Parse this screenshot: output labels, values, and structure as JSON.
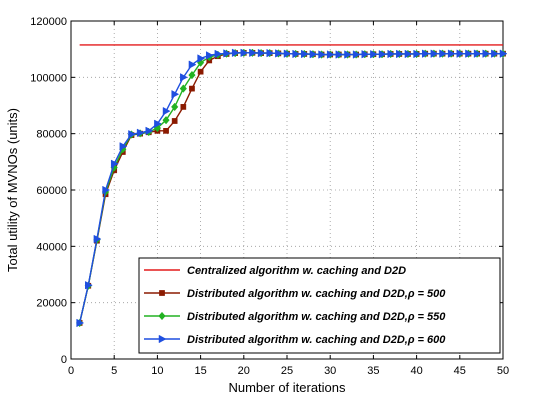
{
  "chart_data": {
    "type": "line",
    "xlabel": "Number of iterations",
    "ylabel": "Total utility of MVNOs (units)",
    "xlim": [
      0,
      50
    ],
    "ylim": [
      0,
      120000
    ],
    "xticks": [
      "0",
      "5",
      "10",
      "15",
      "20",
      "25",
      "30",
      "35",
      "40",
      "45",
      "50"
    ],
    "yticks": [
      "0",
      "20000",
      "40000",
      "60000",
      "80000",
      "100000",
      "120000"
    ],
    "grid": true,
    "legend_position": "bottom-right",
    "series": [
      {
        "name": "Centralized algorithm w. caching and D2D",
        "color": "#e31a1c",
        "marker": "none",
        "x": [
          1,
          50
        ],
        "y": [
          111500,
          111500
        ]
      },
      {
        "name": "Distributed algorithm w. caching and D2D,ρ = 500",
        "color": "#8b1a00",
        "marker": "square",
        "x": [
          1,
          2,
          3,
          4,
          5,
          6,
          7,
          8,
          9,
          10,
          11,
          12,
          13,
          14,
          15,
          16,
          17,
          18,
          19,
          20,
          21,
          22,
          23,
          24,
          25,
          26,
          27,
          28,
          29,
          30,
          31,
          32,
          33,
          34,
          35,
          36,
          37,
          38,
          39,
          40,
          41,
          42,
          43,
          44,
          45,
          46,
          47,
          48,
          49,
          50
        ],
        "y": [
          12800,
          26000,
          42000,
          58500,
          67000,
          73500,
          79500,
          80000,
          80500,
          81000,
          81000,
          84500,
          89500,
          96000,
          102000,
          106000,
          107500,
          108300,
          108600,
          108700,
          108700,
          108600,
          108600,
          108500,
          108400,
          108300,
          108300,
          108200,
          108100,
          108100,
          108100,
          108100,
          108100,
          108200,
          108200,
          108200,
          108300,
          108300,
          108300,
          108300,
          108400,
          108400,
          108400,
          108400,
          108400,
          108400,
          108400,
          108400,
          108400,
          108400
        ]
      },
      {
        "name": "Distributed algorithm w. caching and D2D,ρ = 550",
        "color": "#22b222",
        "marker": "diamond",
        "x": [
          1,
          2,
          3,
          4,
          5,
          6,
          7,
          8,
          9,
          10,
          11,
          12,
          13,
          14,
          15,
          16,
          17,
          18,
          19,
          20,
          21,
          22,
          23,
          24,
          25,
          26,
          27,
          28,
          29,
          30,
          31,
          32,
          33,
          34,
          35,
          36,
          37,
          38,
          39,
          40,
          41,
          42,
          43,
          44,
          45,
          46,
          47,
          48,
          49,
          50
        ],
        "y": [
          12800,
          26000,
          42300,
          59300,
          68000,
          74500,
          79700,
          80100,
          80600,
          82000,
          84800,
          89500,
          96000,
          100800,
          105200,
          107200,
          108000,
          108400,
          108600,
          108700,
          108700,
          108600,
          108600,
          108500,
          108400,
          108300,
          108300,
          108200,
          108100,
          108100,
          108100,
          108100,
          108100,
          108200,
          108200,
          108200,
          108300,
          108300,
          108300,
          108300,
          108400,
          108400,
          108400,
          108400,
          108400,
          108400,
          108400,
          108400,
          108400,
          108400
        ]
      },
      {
        "name": "Distributed algorithm w. caching and D2D,ρ = 600",
        "color": "#1f4fe0",
        "marker": "triangle-right",
        "x": [
          1,
          2,
          3,
          4,
          5,
          6,
          7,
          8,
          9,
          10,
          11,
          12,
          13,
          14,
          15,
          16,
          17,
          18,
          19,
          20,
          21,
          22,
          23,
          24,
          25,
          26,
          27,
          28,
          29,
          30,
          31,
          32,
          33,
          34,
          35,
          36,
          37,
          38,
          39,
          40,
          41,
          42,
          43,
          44,
          45,
          46,
          47,
          48,
          49,
          50
        ],
        "y": [
          12800,
          26200,
          42600,
          60000,
          69300,
          75500,
          79800,
          80300,
          81000,
          83500,
          88000,
          94000,
          100000,
          104500,
          106700,
          107800,
          108300,
          108500,
          108700,
          108700,
          108700,
          108600,
          108600,
          108500,
          108400,
          108300,
          108300,
          108200,
          108100,
          108100,
          108100,
          108100,
          108100,
          108200,
          108200,
          108200,
          108300,
          108300,
          108300,
          108300,
          108400,
          108400,
          108400,
          108400,
          108400,
          108400,
          108400,
          108400,
          108400,
          108400
        ]
      }
    ]
  }
}
